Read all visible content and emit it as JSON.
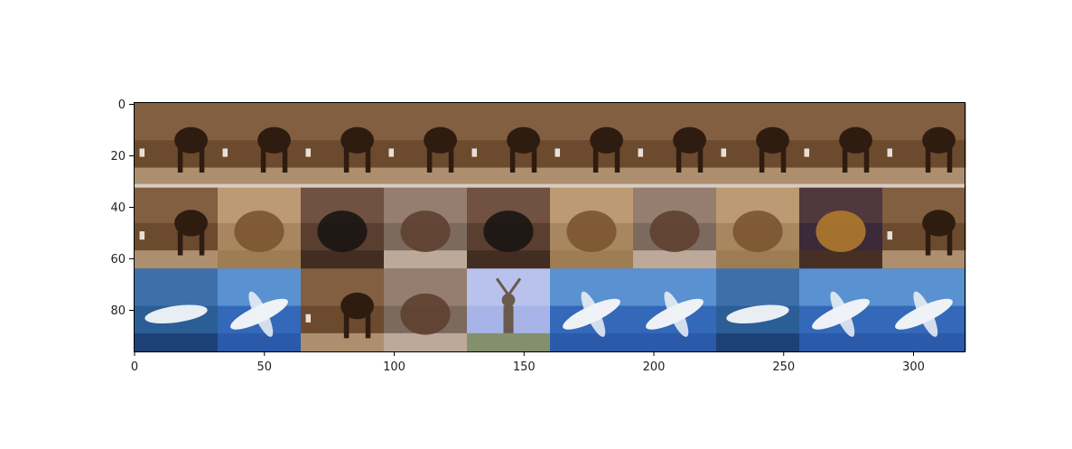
{
  "figure": {
    "x_ticks": [
      "0",
      "50",
      "100",
      "150",
      "200",
      "250",
      "300"
    ],
    "y_ticks": [
      "0",
      "20",
      "40",
      "60",
      "80"
    ]
  },
  "image_grid": {
    "rows": 3,
    "cols": 10,
    "extent_x": [
      0,
      320
    ],
    "extent_y": [
      96,
      0
    ],
    "tiles": [
      [
        "horse",
        "horse",
        "horse",
        "horse",
        "horse",
        "horse",
        "horse",
        "horse",
        "horse",
        "horse"
      ],
      [
        "horse",
        "frog",
        "cat",
        "bird",
        "cat",
        "frog",
        "bird",
        "frog",
        "dog",
        "horse"
      ],
      [
        "ship",
        "airplane",
        "horse",
        "bird",
        "deer",
        "airplane",
        "airplane",
        "ship",
        "airplane",
        "airplane"
      ]
    ],
    "palettes": {
      "horse": {
        "bg": "#6b4a2e",
        "bg2": "#8a6848",
        "subject": "#2e1c10",
        "ground": "#b89b7a"
      },
      "frog": {
        "bg": "#a88660",
        "bg2": "#c4a27c",
        "subject": "#7a5530",
        "ground": "#9c7a52"
      },
      "cat": {
        "bg": "#5a3e30",
        "bg2": "#7a5a48",
        "subject": "#1a1412",
        "ground": "#3e2a20"
      },
      "bird": {
        "bg": "#7c6a5e",
        "bg2": "#a08878",
        "subject": "#5e4030",
        "ground": "#c8b4a4"
      },
      "dog": {
        "bg": "#3a2a3a",
        "bg2": "#5a3e40",
        "subject": "#b07a2e",
        "ground": "#4a3022"
      },
      "ship": {
        "bg": "#2c5e96",
        "bg2": "#4478b4",
        "subject": "#e8eef4",
        "ground": "#1c3c70"
      },
      "airplane": {
        "bg": "#3468b8",
        "bg2": "#6aa2dc",
        "subject": "#eef2f6",
        "ground": "#2a58a8"
      },
      "deer": {
        "bg": "#a8b4e8",
        "bg2": "#c0c8f0",
        "subject": "#6a5a4c",
        "ground": "#7c8a58"
      }
    }
  }
}
